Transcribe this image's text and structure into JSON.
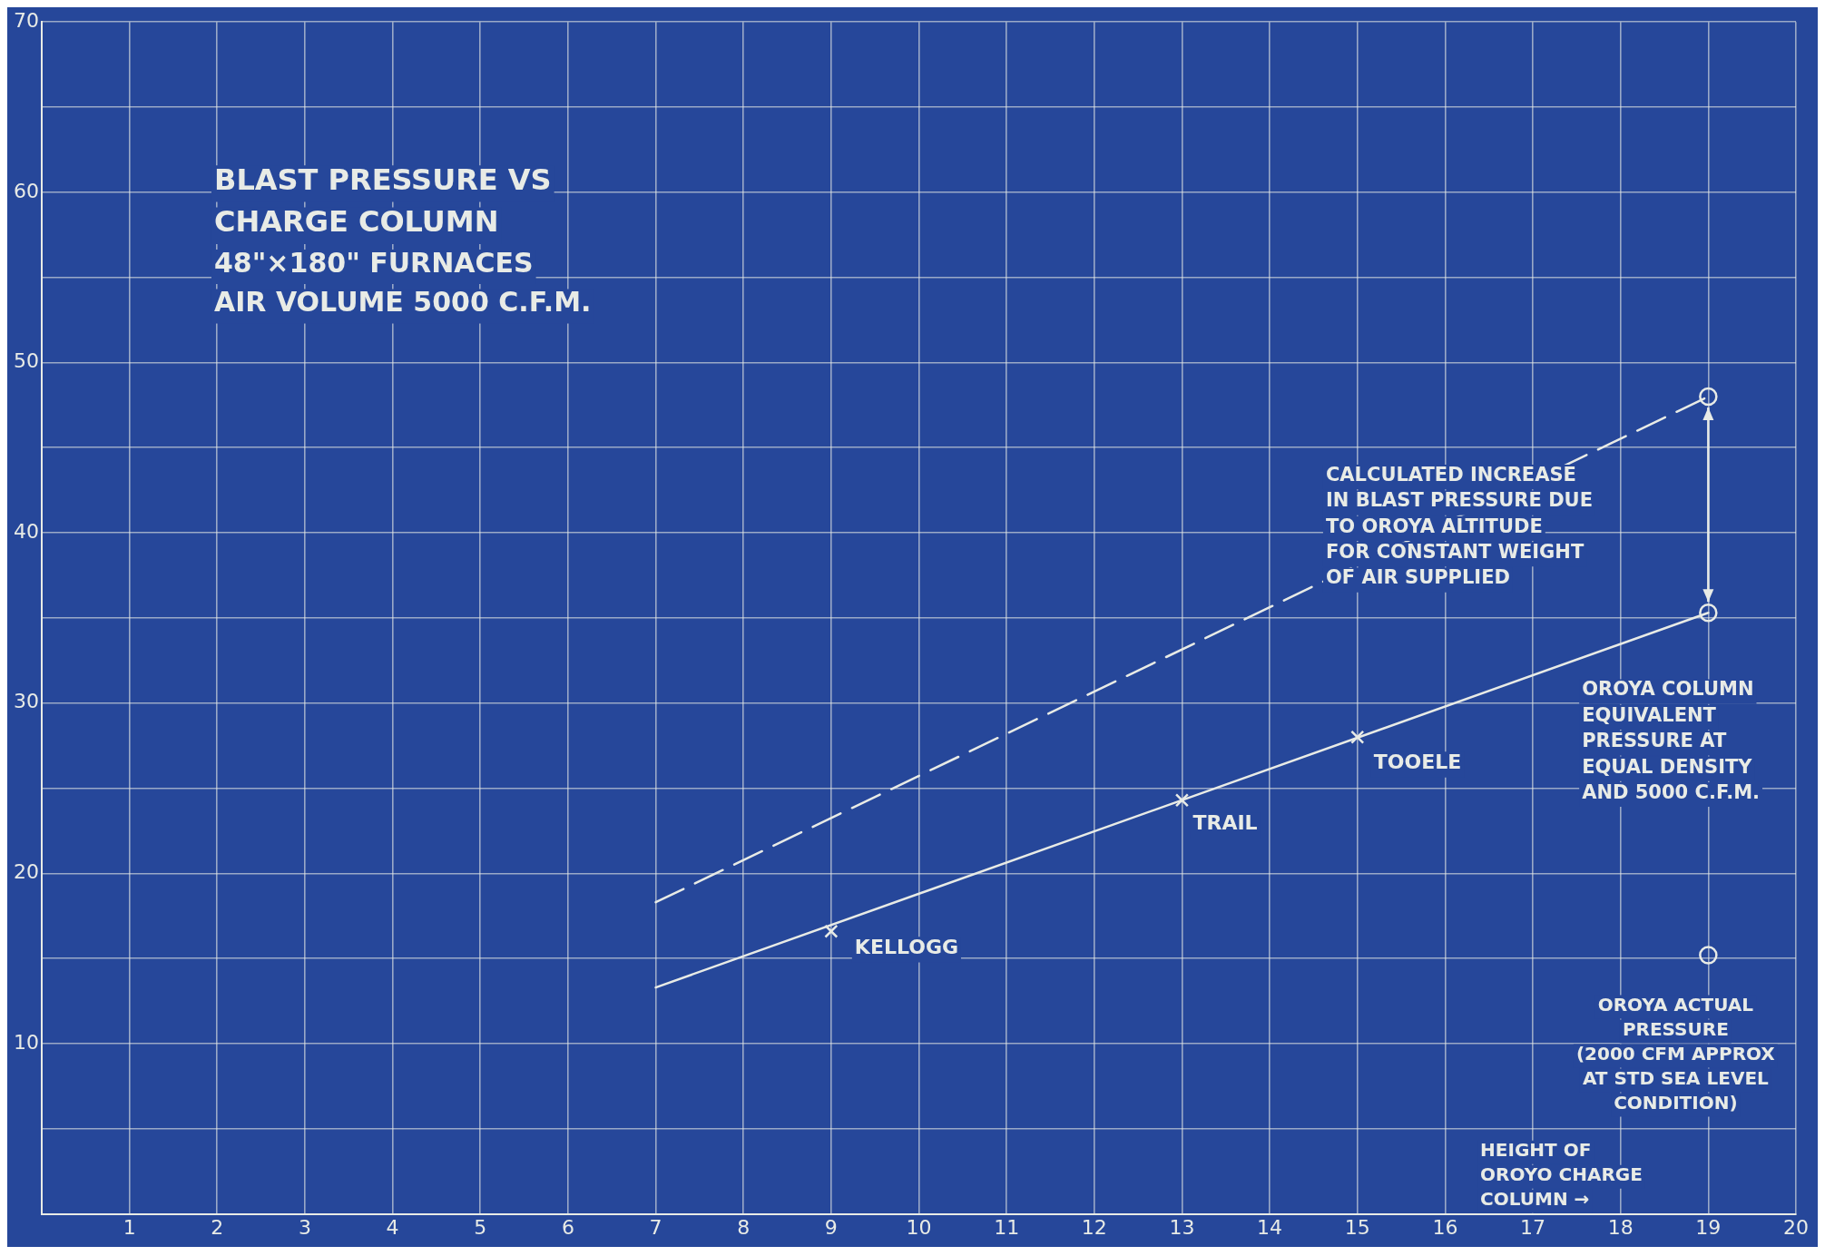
{
  "chart_data": {
    "type": "line",
    "title": "BLAST PRESSURE VS\nCHARGE COLUMN",
    "subtitle": "48\"×180\" FURNACES\nAIR VOLUME 5000 C.F.M.",
    "xlim": [
      0,
      20
    ],
    "xticks": [
      {
        "value": 0,
        "label": null
      },
      1,
      2,
      3,
      4,
      5,
      6,
      7,
      8,
      9,
      10,
      11,
      12,
      13,
      14,
      15,
      16,
      17,
      18,
      19,
      20
    ],
    "ylim": [
      0,
      70
    ],
    "yticks": [
      {
        "value": 0,
        "label": null
      },
      {
        "value": 5,
        "label": null
      },
      10,
      {
        "value": 15,
        "label": null
      },
      20,
      {
        "value": 25,
        "label": null
      },
      30,
      {
        "value": 35,
        "label": null
      },
      40,
      {
        "value": 45,
        "label": null
      },
      50,
      {
        "value": 55,
        "label": null
      },
      60,
      {
        "value": 65,
        "label": null
      },
      70
    ],
    "grid": true,
    "legend": false,
    "series": [
      {
        "x": [
          7,
          19
        ],
        "values": [
          13.3,
          35.3
        ],
        "color": "#e8ebe6",
        "marker": "none",
        "line_style": "solid"
      },
      {
        "x": [
          7,
          19
        ],
        "values": [
          18.3,
          48
        ],
        "color": "#e8ebe6",
        "marker": "none",
        "line_style": "dashed"
      },
      {
        "type": "scatter",
        "x": [
          9,
          13,
          15
        ],
        "values": [
          16.6,
          24.3,
          28
        ],
        "color": "#e8ebe6",
        "marker": "cross"
      },
      {
        "type": "scatter",
        "x": [
          19,
          19,
          19
        ],
        "values": [
          48,
          35.3,
          15.2
        ],
        "color": "#e8ebe6",
        "marker": "circle"
      }
    ],
    "annotations": [
      {
        "text": "KELLOGG",
        "x": 9,
        "y": 16.6
      },
      {
        "text": "TRAIL",
        "x": 13,
        "y": 24.3
      },
      {
        "text": "TOOELE",
        "x": 15,
        "y": 28
      },
      "CALCULATED INCREASE\nIN BLAST PRESSURE DUE\nTO OROYA ALTITUDE\nFOR CONSTANT WEIGHT\nOF AIR SUPPLIED",
      "OROYA COLUMN\nEQUIVALENT\nPRESSURE AT\nEQUAL DENSITY\nAND 5000 C.F.M.",
      {
        "text": "OROYA ACTUAL\nPRESSURE\n(2000 CFM APPROX\nAT STD SEA LEVEL\nCONDITION)",
        "x": 19,
        "y": 15.2
      },
      "HEIGHT OF\nOROYO CHARGE\nCOLUMN →"
    ]
  }
}
